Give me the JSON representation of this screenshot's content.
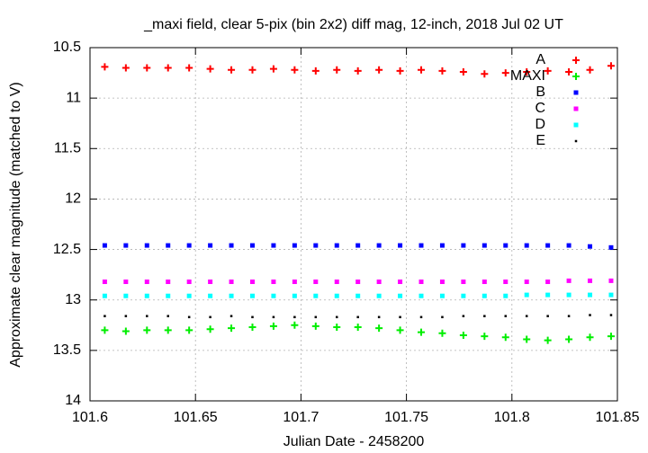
{
  "chart_data": {
    "type": "scatter",
    "title": "_maxi field, clear 5-pix (bin 2x2) diff mag, 12-inch, 2018 Jul 02 UT",
    "x_label": "Julian Date - 2458200",
    "y_label": "Approximate clear magnitude (matched to V)",
    "x": [
      101.607,
      101.617,
      101.627,
      101.637,
      101.647,
      101.657,
      101.667,
      101.677,
      101.687,
      101.697,
      101.707,
      101.717,
      101.727,
      101.737,
      101.747,
      101.757,
      101.767,
      101.777,
      101.787,
      101.797,
      101.807,
      101.817,
      101.827,
      101.837,
      101.847
    ],
    "series": [
      {
        "name": "A",
        "color": "#ff0000",
        "marker": "plus",
        "values": [
          10.69,
          10.7,
          10.7,
          10.7,
          10.7,
          10.71,
          10.72,
          10.72,
          10.71,
          10.72,
          10.73,
          10.72,
          10.73,
          10.72,
          10.73,
          10.72,
          10.73,
          10.74,
          10.76,
          10.75,
          10.74,
          10.73,
          10.74,
          10.72,
          10.68
        ]
      },
      {
        "name": "MAXI",
        "color": "#00ee00",
        "marker": "plus",
        "values": [
          13.3,
          13.31,
          13.3,
          13.3,
          13.3,
          13.29,
          13.28,
          13.27,
          13.26,
          13.25,
          13.26,
          13.27,
          13.27,
          13.28,
          13.3,
          13.32,
          13.33,
          13.35,
          13.36,
          13.37,
          13.39,
          13.4,
          13.39,
          13.37,
          13.36
        ]
      },
      {
        "name": "B",
        "color": "#0000ff",
        "marker": "square",
        "values": [
          12.46,
          12.46,
          12.46,
          12.46,
          12.46,
          12.46,
          12.46,
          12.46,
          12.46,
          12.46,
          12.46,
          12.46,
          12.46,
          12.46,
          12.46,
          12.46,
          12.46,
          12.46,
          12.46,
          12.46,
          12.46,
          12.46,
          12.46,
          12.47,
          12.48
        ]
      },
      {
        "name": "C",
        "color": "#ff00ff",
        "marker": "square",
        "values": [
          12.82,
          12.82,
          12.82,
          12.82,
          12.82,
          12.82,
          12.82,
          12.82,
          12.82,
          12.82,
          12.82,
          12.82,
          12.82,
          12.82,
          12.82,
          12.82,
          12.82,
          12.82,
          12.82,
          12.82,
          12.82,
          12.82,
          12.81,
          12.81,
          12.81
        ]
      },
      {
        "name": "D",
        "color": "#00ffff",
        "marker": "square",
        "values": [
          12.96,
          12.96,
          12.96,
          12.96,
          12.96,
          12.96,
          12.96,
          12.96,
          12.96,
          12.96,
          12.96,
          12.96,
          12.96,
          12.96,
          12.96,
          12.96,
          12.96,
          12.96,
          12.96,
          12.96,
          12.95,
          12.95,
          12.95,
          12.95,
          12.95
        ]
      },
      {
        "name": "E",
        "color": "#000000",
        "marker": "dot",
        "values": [
          13.16,
          13.16,
          13.16,
          13.16,
          13.17,
          13.17,
          13.16,
          13.17,
          13.17,
          13.17,
          13.17,
          13.17,
          13.17,
          13.17,
          13.17,
          13.17,
          13.17,
          13.16,
          13.16,
          13.16,
          13.16,
          13.16,
          13.16,
          13.15,
          13.15
        ]
      }
    ],
    "xlim": [
      101.6,
      101.85
    ],
    "xticks": [
      101.6,
      101.65,
      101.7,
      101.75,
      101.8,
      101.85
    ],
    "ylim": [
      10.5,
      14
    ],
    "yticks": [
      10.5,
      11,
      11.5,
      12,
      12.5,
      13,
      13.5,
      14
    ],
    "y_reversed": true,
    "grid": true,
    "legend": "top-right"
  }
}
